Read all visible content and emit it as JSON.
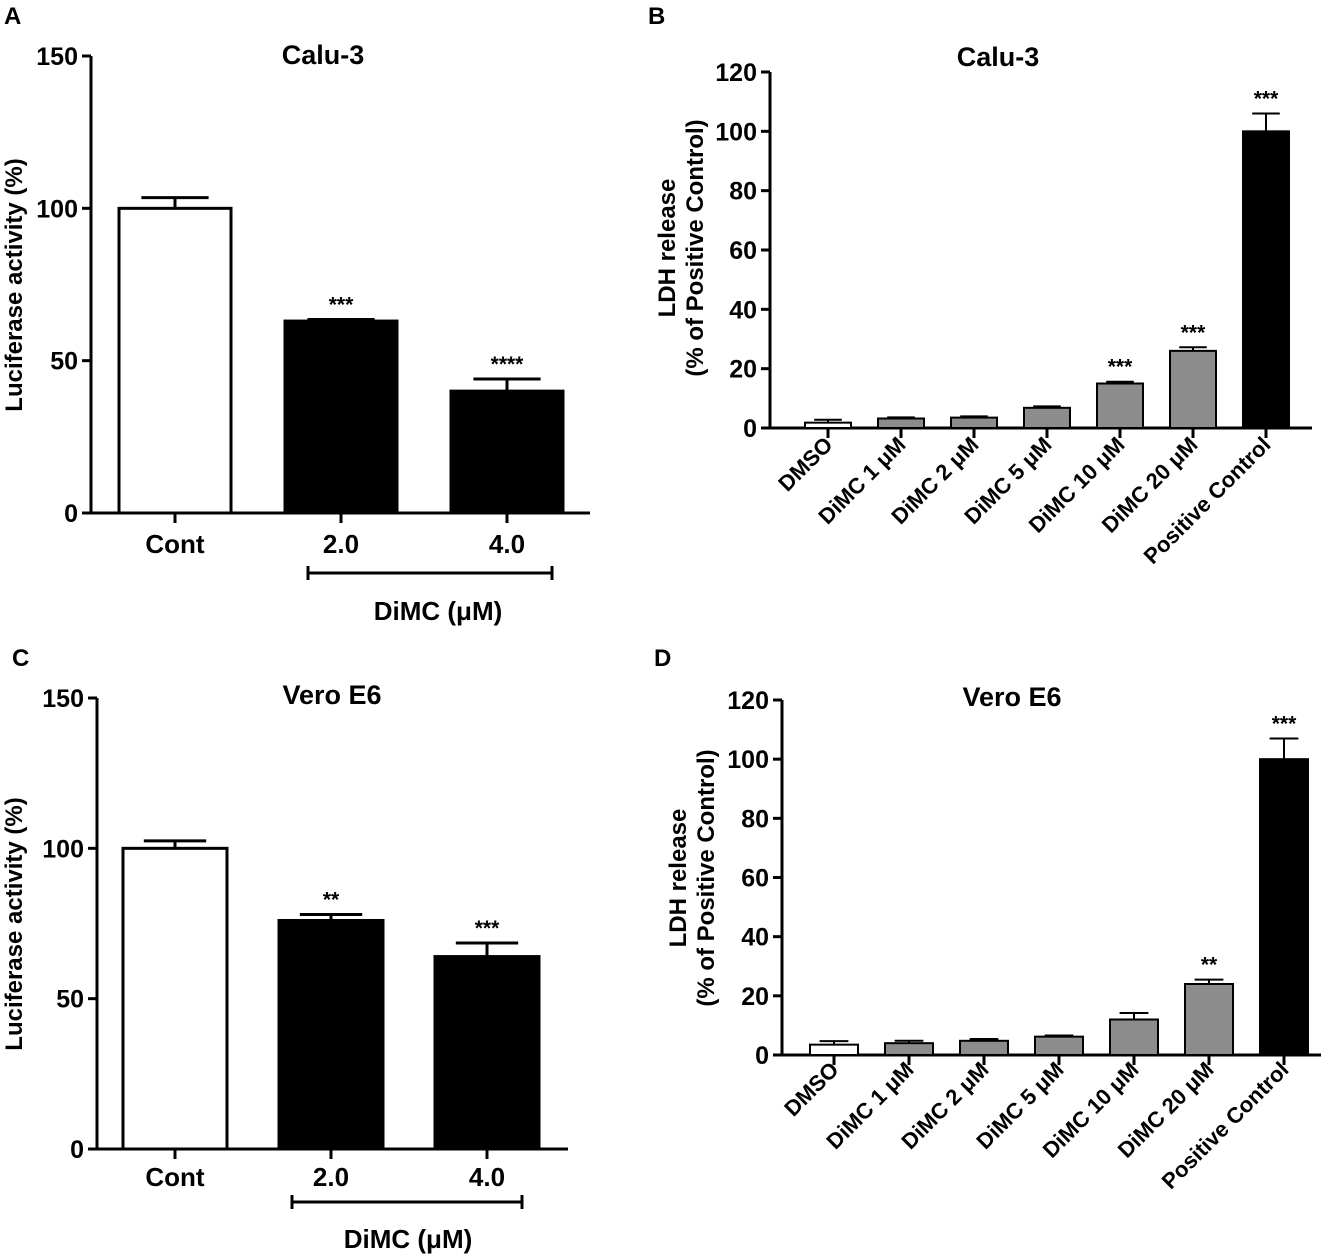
{
  "chart_data": [
    {
      "panel": "A",
      "type": "bar",
      "title": "Calu-3",
      "ylabel": "Luciferase activity (%)",
      "ylim": [
        0,
        150
      ],
      "yticks": [
        0,
        50,
        100,
        150
      ],
      "categories": [
        "Cont",
        "2.0",
        "4.0"
      ],
      "values": [
        100,
        63,
        40
      ],
      "errors": [
        3.5,
        0.5,
        4
      ],
      "significance": [
        "",
        "***",
        "****"
      ],
      "colors": [
        "#ffffff",
        "#000000",
        "#000000"
      ],
      "group_label": "DiMC (μM)",
      "grid": false
    },
    {
      "panel": "B",
      "type": "bar",
      "title": "Calu-3",
      "ylabel": [
        "LDH release",
        "(% of Positive Control)"
      ],
      "ylim": [
        0,
        120
      ],
      "yticks": [
        0,
        20,
        40,
        60,
        80,
        100,
        120
      ],
      "categories": [
        "DMSO",
        "DiMC 1 μM",
        "DiMC 2 μM",
        "DiMC 5 μM",
        "DiMC 10 μM",
        "DiMC 20 μM",
        "Positive Control"
      ],
      "values": [
        1.8,
        3.2,
        3.5,
        6.8,
        15,
        26,
        100
      ],
      "errors": [
        1.0,
        0.4,
        0.4,
        0.5,
        0.6,
        1.2,
        6
      ],
      "significance": [
        "",
        "",
        "",
        "",
        "***",
        "***",
        "***"
      ],
      "colors": [
        "#ffffff",
        "#8c8c8c",
        "#8c8c8c",
        "#8c8c8c",
        "#8c8c8c",
        "#8c8c8c",
        "#000000"
      ],
      "grid": false
    },
    {
      "panel": "C",
      "type": "bar",
      "title": "Vero E6",
      "ylabel": "Luciferase activity (%)",
      "ylim": [
        0,
        150
      ],
      "yticks": [
        0,
        50,
        100,
        150
      ],
      "categories": [
        "Cont",
        "2.0",
        "4.0"
      ],
      "values": [
        100,
        76,
        64
      ],
      "errors": [
        2.5,
        2,
        4.5
      ],
      "significance": [
        "",
        "**",
        "***"
      ],
      "colors": [
        "#ffffff",
        "#000000",
        "#000000"
      ],
      "group_label": "DiMC (μM)",
      "grid": false
    },
    {
      "panel": "D",
      "type": "bar",
      "title": "Vero E6",
      "ylabel": [
        "LDH release",
        "(% of Positive Control)"
      ],
      "ylim": [
        0,
        120
      ],
      "yticks": [
        0,
        20,
        40,
        60,
        80,
        100,
        120
      ],
      "categories": [
        "DMSO",
        "DiMC 1 μM",
        "DiMC 2 μM",
        "DiMC 5 μM",
        "DiMC 10 μM",
        "DiMC 20 μM",
        "Positive Control"
      ],
      "values": [
        3.5,
        4,
        4.8,
        6.2,
        12,
        24,
        100
      ],
      "errors": [
        1.2,
        0.8,
        0.6,
        0.4,
        2.2,
        1.5,
        7
      ],
      "significance": [
        "",
        "",
        "",
        "",
        "",
        "**",
        "***"
      ],
      "colors": [
        "#ffffff",
        "#8c8c8c",
        "#8c8c8c",
        "#8c8c8c",
        "#8c8c8c",
        "#8c8c8c",
        "#000000"
      ],
      "grid": false
    }
  ]
}
